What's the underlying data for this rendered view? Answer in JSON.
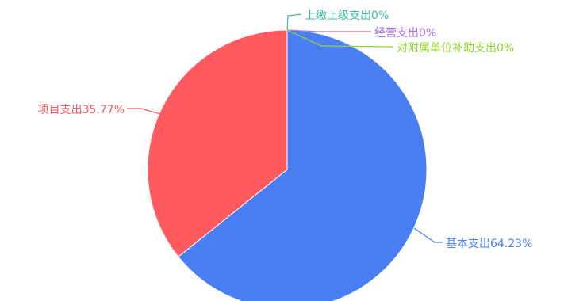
{
  "chart_data": {
    "type": "pie",
    "title": "",
    "slices": [
      {
        "label": "基本支出64.23%",
        "name": "基本支出",
        "value": 64.23,
        "color": "#4a7ff3"
      },
      {
        "label": "项目支出35.77%",
        "name": "项目支出",
        "value": 35.77,
        "color": "#ff5a5f"
      },
      {
        "label": "上缴上级支出0%",
        "name": "上缴上级支出",
        "value": 0,
        "color": "#3cb9a1"
      },
      {
        "label": "经营支出0%",
        "name": "经营支出",
        "value": 0,
        "color": "#a96fe6"
      },
      {
        "label": "对附属单位补助支出0%",
        "name": "对附属单位补助支出",
        "value": 0,
        "color": "#93d22b"
      }
    ]
  }
}
